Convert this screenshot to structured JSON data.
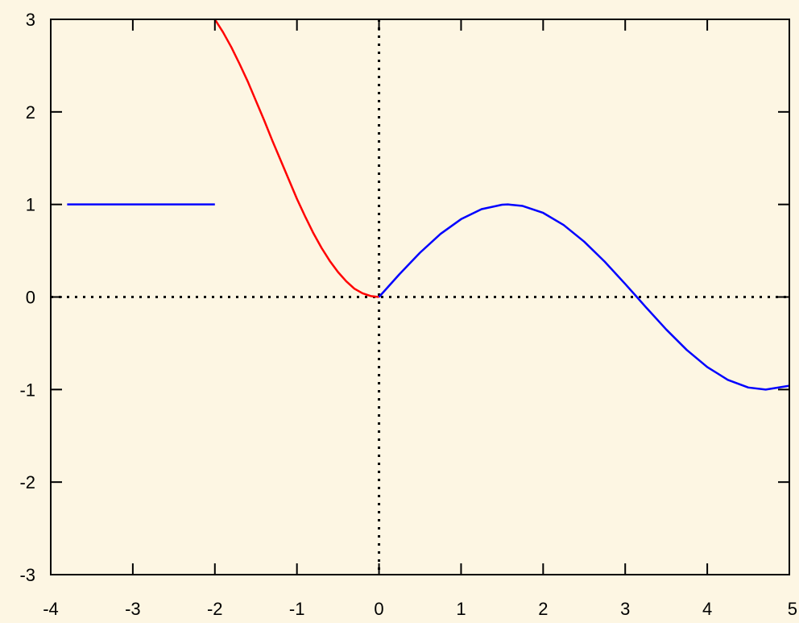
{
  "chart_data": {
    "type": "line",
    "title": "",
    "xlabel": "",
    "ylabel": "",
    "xlim": [
      -4,
      5
    ],
    "ylim": [
      -3,
      3
    ],
    "x_ticks": [
      -4,
      -3,
      -2,
      -1,
      0,
      1,
      2,
      3,
      4,
      5
    ],
    "y_ticks": [
      -3,
      -2,
      -1,
      0,
      1,
      2,
      3
    ],
    "x_tick_labels": [
      "-4",
      "-3",
      "-2",
      "-1",
      "0",
      "1",
      "2",
      "3",
      "4",
      "5"
    ],
    "y_tick_labels": [
      "-3",
      "-2",
      "-1",
      "0",
      "1",
      "2",
      "3"
    ],
    "grid": false,
    "zero_axes": "dotted",
    "background_color": "#fdf6e3",
    "series": [
      {
        "color": "#0000ff",
        "x": [
          -3.8,
          -2
        ],
        "y": [
          1,
          1
        ]
      },
      {
        "color": "#ff0000",
        "x": [
          -2,
          -1.9,
          -1.8,
          -1.7,
          -1.6,
          -1.5,
          -1.4,
          -1.3,
          -1.2,
          -1.1,
          -1.0,
          -0.9,
          -0.8,
          -0.7,
          -0.6,
          -0.5,
          -0.4,
          -0.3,
          -0.2,
          -0.1,
          0
        ],
        "y": [
          3.0,
          2.86,
          2.7,
          2.52,
          2.33,
          2.12,
          1.91,
          1.69,
          1.48,
          1.27,
          1.06,
          0.87,
          0.69,
          0.53,
          0.39,
          0.27,
          0.17,
          0.09,
          0.04,
          0.01,
          0
        ]
      },
      {
        "color": "#0000ff",
        "x": [
          0,
          0.25,
          0.5,
          0.75,
          1.0,
          1.25,
          1.5,
          1.571,
          1.75,
          2.0,
          2.25,
          2.5,
          2.75,
          3.0,
          3.142,
          3.25,
          3.5,
          3.75,
          4.0,
          4.25,
          4.5,
          4.712,
          5.0
        ],
        "y": [
          0,
          0.247,
          0.479,
          0.682,
          0.841,
          0.949,
          0.997,
          1.0,
          0.984,
          0.909,
          0.778,
          0.598,
          0.382,
          0.141,
          0,
          -0.108,
          -0.351,
          -0.572,
          -0.757,
          -0.895,
          -0.978,
          -1.0,
          -0.959
        ]
      }
    ]
  }
}
